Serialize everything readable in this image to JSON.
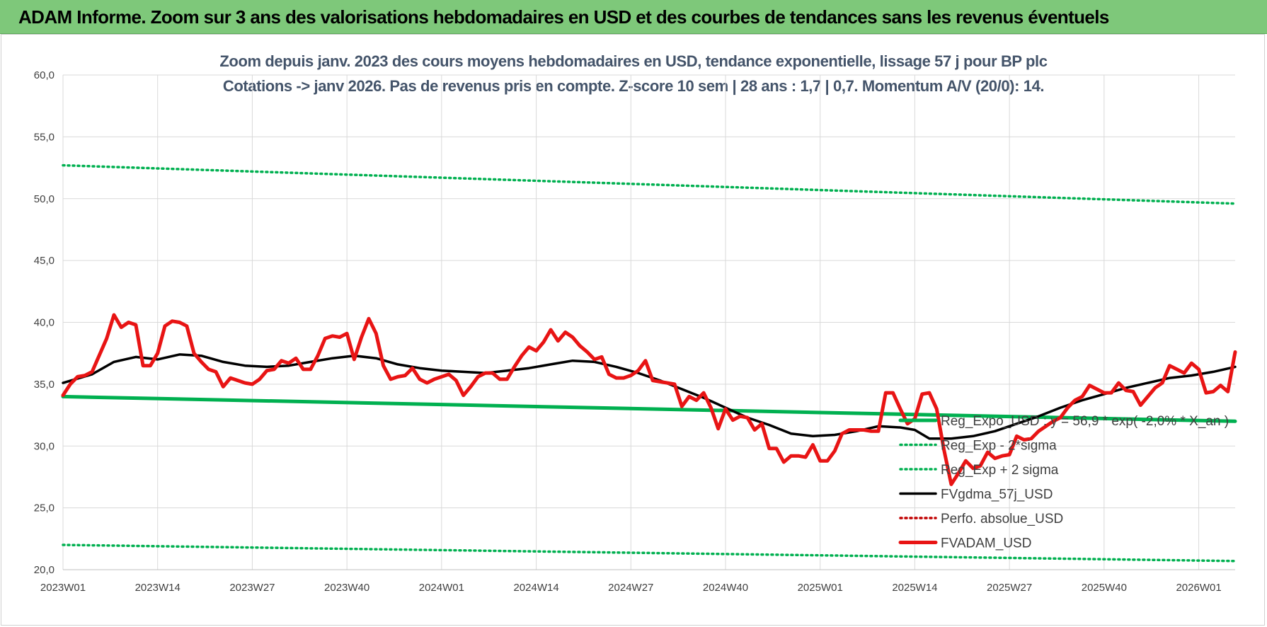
{
  "header": {
    "title": "ADAM Informe. Zoom sur 3 ans des valorisations hebdomadaires en USD et des courbes de tendances sans les revenus éventuels"
  },
  "chart_data": {
    "type": "line",
    "title": [
      "Zoom depuis janv. 2023 des cours moyens hebdomadaires en USD, tendance exponentielle, lissage 57 j pour BP plc",
      "Cotations -> janv 2026. Pas de revenus pris en compte. Z-score 10 sem | 28 ans : 1,7 | 0,7. Momentum A/V (20/0): 14."
    ],
    "xlabel": "",
    "ylabel": "",
    "ylim": [
      20,
      60
    ],
    "yticks": [
      "20,0",
      "25,0",
      "30,0",
      "35,0",
      "40,0",
      "45,0",
      "50,0",
      "55,0",
      "60,0"
    ],
    "xticks": [
      "2023W01",
      "2023W14",
      "2023W27",
      "2023W40",
      "2024W01",
      "2024W14",
      "2024W27",
      "2024W40",
      "2025W01",
      "2025W14",
      "2025W27",
      "2025W40",
      "2026W01"
    ],
    "xtick_weeks": [
      0,
      13,
      26,
      39,
      52,
      65,
      78,
      91,
      104,
      117,
      130,
      143,
      156
    ],
    "x_week_max": 161,
    "grid": true,
    "legend_position": "bottom-right",
    "colors": {
      "green": "#00b050",
      "black": "#000000",
      "red": "#e81414",
      "dark_red": "#c00000"
    },
    "series": [
      {
        "name": "Reg_Expo_USD : y = 56,9 * exp( -2,0% * X_an )",
        "style": "solid-thick",
        "color": "#00b050",
        "points": [
          [
            0,
            34.0
          ],
          [
            161,
            32.0
          ]
        ]
      },
      {
        "name": "Reg_Exp - 2*sigma",
        "style": "dotted",
        "color": "#00b050",
        "points": [
          [
            0,
            22.0
          ],
          [
            161,
            20.7
          ]
        ]
      },
      {
        "name": "Reg_Exp + 2 sigma",
        "style": "dotted",
        "color": "#00b050",
        "points": [
          [
            0,
            52.7
          ],
          [
            161,
            49.6
          ]
        ]
      },
      {
        "name": "FVgdma_57j_USD",
        "style": "solid",
        "color": "#000000",
        "points": [
          [
            0,
            35.1
          ],
          [
            4,
            35.8
          ],
          [
            7,
            36.8
          ],
          [
            10,
            37.2
          ],
          [
            13,
            37.0
          ],
          [
            16,
            37.4
          ],
          [
            19,
            37.3
          ],
          [
            22,
            36.8
          ],
          [
            25,
            36.5
          ],
          [
            28,
            36.4
          ],
          [
            31,
            36.5
          ],
          [
            34,
            36.8
          ],
          [
            37,
            37.1
          ],
          [
            40,
            37.3
          ],
          [
            43,
            37.1
          ],
          [
            46,
            36.6
          ],
          [
            49,
            36.3
          ],
          [
            52,
            36.1
          ],
          [
            55,
            36.0
          ],
          [
            58,
            35.9
          ],
          [
            61,
            36.1
          ],
          [
            64,
            36.3
          ],
          [
            67,
            36.6
          ],
          [
            70,
            36.9
          ],
          [
            73,
            36.8
          ],
          [
            76,
            36.4
          ],
          [
            79,
            35.9
          ],
          [
            82,
            35.3
          ],
          [
            85,
            34.6
          ],
          [
            88,
            33.9
          ],
          [
            91,
            33.1
          ],
          [
            94,
            32.3
          ],
          [
            97,
            31.7
          ],
          [
            100,
            31.0
          ],
          [
            103,
            30.8
          ],
          [
            106,
            30.9
          ],
          [
            109,
            31.2
          ],
          [
            112,
            31.6
          ],
          [
            115,
            31.5
          ],
          [
            117,
            31.3
          ],
          [
            119,
            30.6
          ],
          [
            122,
            30.6
          ],
          [
            125,
            30.8
          ],
          [
            128,
            31.2
          ],
          [
            131,
            31.8
          ],
          [
            134,
            32.4
          ],
          [
            137,
            33.1
          ],
          [
            140,
            33.7
          ],
          [
            143,
            34.2
          ],
          [
            146,
            34.7
          ],
          [
            149,
            35.1
          ],
          [
            152,
            35.5
          ],
          [
            155,
            35.7
          ],
          [
            158,
            36.0
          ],
          [
            161,
            36.4
          ]
        ]
      },
      {
        "name": "Perfo. absolue_USD",
        "style": "dotted",
        "color": "#c00000",
        "points": []
      },
      {
        "name": "FVADAM_USD",
        "style": "solid-thick",
        "color": "#e81414",
        "points": [
          [
            0,
            34.1
          ],
          [
            1,
            35.0
          ],
          [
            2,
            35.6
          ],
          [
            3,
            35.7
          ],
          [
            4,
            36.0
          ],
          [
            6,
            38.7
          ],
          [
            7,
            40.6
          ],
          [
            8,
            39.6
          ],
          [
            9,
            40.0
          ],
          [
            10,
            39.8
          ],
          [
            11,
            36.5
          ],
          [
            12,
            36.5
          ],
          [
            13,
            37.5
          ],
          [
            14,
            39.7
          ],
          [
            15,
            40.1
          ],
          [
            16,
            40.0
          ],
          [
            17,
            39.7
          ],
          [
            18,
            37.5
          ],
          [
            19,
            36.8
          ],
          [
            20,
            36.2
          ],
          [
            21,
            36.0
          ],
          [
            22,
            34.8
          ],
          [
            23,
            35.5
          ],
          [
            24,
            35.3
          ],
          [
            25,
            35.1
          ],
          [
            26,
            35.0
          ],
          [
            27,
            35.4
          ],
          [
            28,
            36.1
          ],
          [
            29,
            36.2
          ],
          [
            30,
            36.9
          ],
          [
            31,
            36.7
          ],
          [
            32,
            37.1
          ],
          [
            33,
            36.2
          ],
          [
            34,
            36.2
          ],
          [
            35,
            37.3
          ],
          [
            36,
            38.7
          ],
          [
            37,
            38.9
          ],
          [
            38,
            38.8
          ],
          [
            39,
            39.1
          ],
          [
            40,
            37.0
          ],
          [
            41,
            38.8
          ],
          [
            42,
            40.3
          ],
          [
            43,
            39.1
          ],
          [
            44,
            36.5
          ],
          [
            45,
            35.4
          ],
          [
            46,
            35.6
          ],
          [
            47,
            35.7
          ],
          [
            48,
            36.3
          ],
          [
            49,
            35.4
          ],
          [
            50,
            35.1
          ],
          [
            51,
            35.4
          ],
          [
            52,
            35.6
          ],
          [
            53,
            35.8
          ],
          [
            54,
            35.3
          ],
          [
            55,
            34.1
          ],
          [
            56,
            34.8
          ],
          [
            57,
            35.6
          ],
          [
            58,
            35.9
          ],
          [
            59,
            35.9
          ],
          [
            60,
            35.4
          ],
          [
            61,
            35.4
          ],
          [
            62,
            36.4
          ],
          [
            63,
            37.3
          ],
          [
            64,
            38.0
          ],
          [
            65,
            37.7
          ],
          [
            66,
            38.4
          ],
          [
            67,
            39.4
          ],
          [
            68,
            38.5
          ],
          [
            69,
            39.2
          ],
          [
            70,
            38.8
          ],
          [
            71,
            38.1
          ],
          [
            72,
            37.6
          ],
          [
            73,
            37.0
          ],
          [
            74,
            37.2
          ],
          [
            75,
            35.8
          ],
          [
            76,
            35.5
          ],
          [
            77,
            35.5
          ],
          [
            78,
            35.7
          ],
          [
            79,
            36.1
          ],
          [
            80,
            36.9
          ],
          [
            81,
            35.3
          ],
          [
            82,
            35.2
          ],
          [
            83,
            35.1
          ],
          [
            84,
            35.0
          ],
          [
            85,
            33.2
          ],
          [
            86,
            34.0
          ],
          [
            87,
            33.7
          ],
          [
            88,
            34.3
          ],
          [
            89,
            33.1
          ],
          [
            90,
            31.4
          ],
          [
            91,
            33.0
          ],
          [
            92,
            32.1
          ],
          [
            93,
            32.4
          ],
          [
            94,
            32.3
          ],
          [
            95,
            31.3
          ],
          [
            96,
            31.8
          ],
          [
            97,
            29.8
          ],
          [
            98,
            29.8
          ],
          [
            99,
            28.7
          ],
          [
            100,
            29.2
          ],
          [
            101,
            29.2
          ],
          [
            102,
            29.1
          ],
          [
            103,
            30.1
          ],
          [
            104,
            28.8
          ],
          [
            105,
            28.8
          ],
          [
            106,
            29.6
          ],
          [
            107,
            31.0
          ],
          [
            108,
            31.3
          ],
          [
            109,
            31.3
          ],
          [
            110,
            31.3
          ],
          [
            111,
            31.2
          ],
          [
            112,
            31.2
          ],
          [
            113,
            34.3
          ],
          [
            114,
            34.3
          ],
          [
            115,
            33.0
          ],
          [
            116,
            31.8
          ],
          [
            117,
            32.2
          ],
          [
            118,
            34.2
          ],
          [
            119,
            34.3
          ],
          [
            120,
            33.0
          ],
          [
            121,
            29.7
          ],
          [
            122,
            26.9
          ],
          [
            123,
            27.8
          ],
          [
            124,
            28.8
          ],
          [
            125,
            28.2
          ],
          [
            126,
            28.4
          ],
          [
            127,
            29.5
          ],
          [
            128,
            29.0
          ],
          [
            129,
            29.2
          ],
          [
            130,
            29.3
          ],
          [
            131,
            30.8
          ],
          [
            132,
            30.5
          ],
          [
            133,
            30.6
          ],
          [
            134,
            31.2
          ],
          [
            135,
            31.6
          ],
          [
            136,
            32.0
          ],
          [
            137,
            32.3
          ],
          [
            138,
            33.1
          ],
          [
            139,
            33.7
          ],
          [
            140,
            34.0
          ],
          [
            141,
            34.9
          ],
          [
            142,
            34.6
          ],
          [
            143,
            34.3
          ],
          [
            144,
            34.3
          ],
          [
            145,
            35.1
          ],
          [
            146,
            34.5
          ],
          [
            147,
            34.4
          ],
          [
            148,
            33.3
          ],
          [
            149,
            34.0
          ],
          [
            150,
            34.7
          ],
          [
            151,
            35.1
          ],
          [
            152,
            36.5
          ],
          [
            153,
            36.2
          ],
          [
            154,
            35.9
          ],
          [
            155,
            36.7
          ],
          [
            156,
            36.2
          ],
          [
            157,
            34.3
          ],
          [
            158,
            34.4
          ],
          [
            159,
            34.9
          ],
          [
            160,
            34.4
          ],
          [
            161,
            37.6
          ]
        ]
      }
    ]
  }
}
